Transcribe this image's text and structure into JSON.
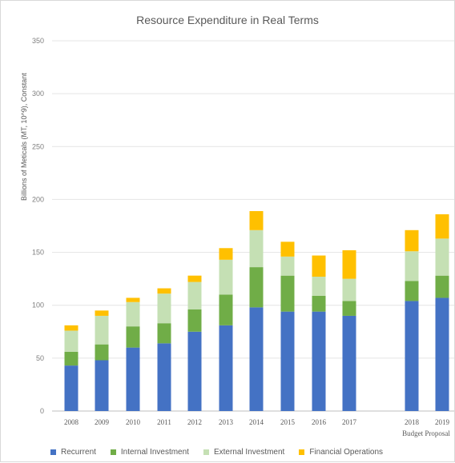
{
  "chart_data": {
    "type": "bar",
    "stacked": true,
    "title": "Resource Expenditure in Real Terms",
    "ylabel": "Billions of Meticals (MT, 10^9), Constant",
    "xlabel": "",
    "ylim": [
      0,
      350
    ],
    "yticks": [
      0,
      50,
      100,
      150,
      200,
      250,
      300,
      350
    ],
    "grid": true,
    "legend_position": "bottom",
    "categories": [
      "2008",
      "2009",
      "2010",
      "2011",
      "2012",
      "2013",
      "2014",
      "2015",
      "2016",
      "2017",
      "2018",
      "2019"
    ],
    "category_sublabels": [
      "",
      "",
      "",
      "",
      "",
      "",
      "",
      "",
      "",
      "",
      "Budget Proposal",
      ""
    ],
    "series": [
      {
        "name": "Recurrent",
        "color": "#4472c4",
        "values": [
          43,
          48,
          60,
          64,
          75,
          81,
          98,
          94,
          94,
          90,
          104,
          107
        ]
      },
      {
        "name": "Internal Investment",
        "color": "#70ad47",
        "values": [
          13,
          15,
          20,
          19,
          21,
          29,
          38,
          34,
          15,
          14,
          19,
          21
        ]
      },
      {
        "name": "External Investment",
        "color": "#c5e0b4",
        "values": [
          20,
          27,
          23,
          28,
          26,
          33,
          35,
          18,
          18,
          21,
          28,
          35
        ]
      },
      {
        "name": "Financial Operations",
        "color": "#ffc000",
        "values": [
          5,
          5,
          4,
          5,
          6,
          11,
          18,
          14,
          20,
          27,
          20,
          23
        ]
      }
    ]
  }
}
